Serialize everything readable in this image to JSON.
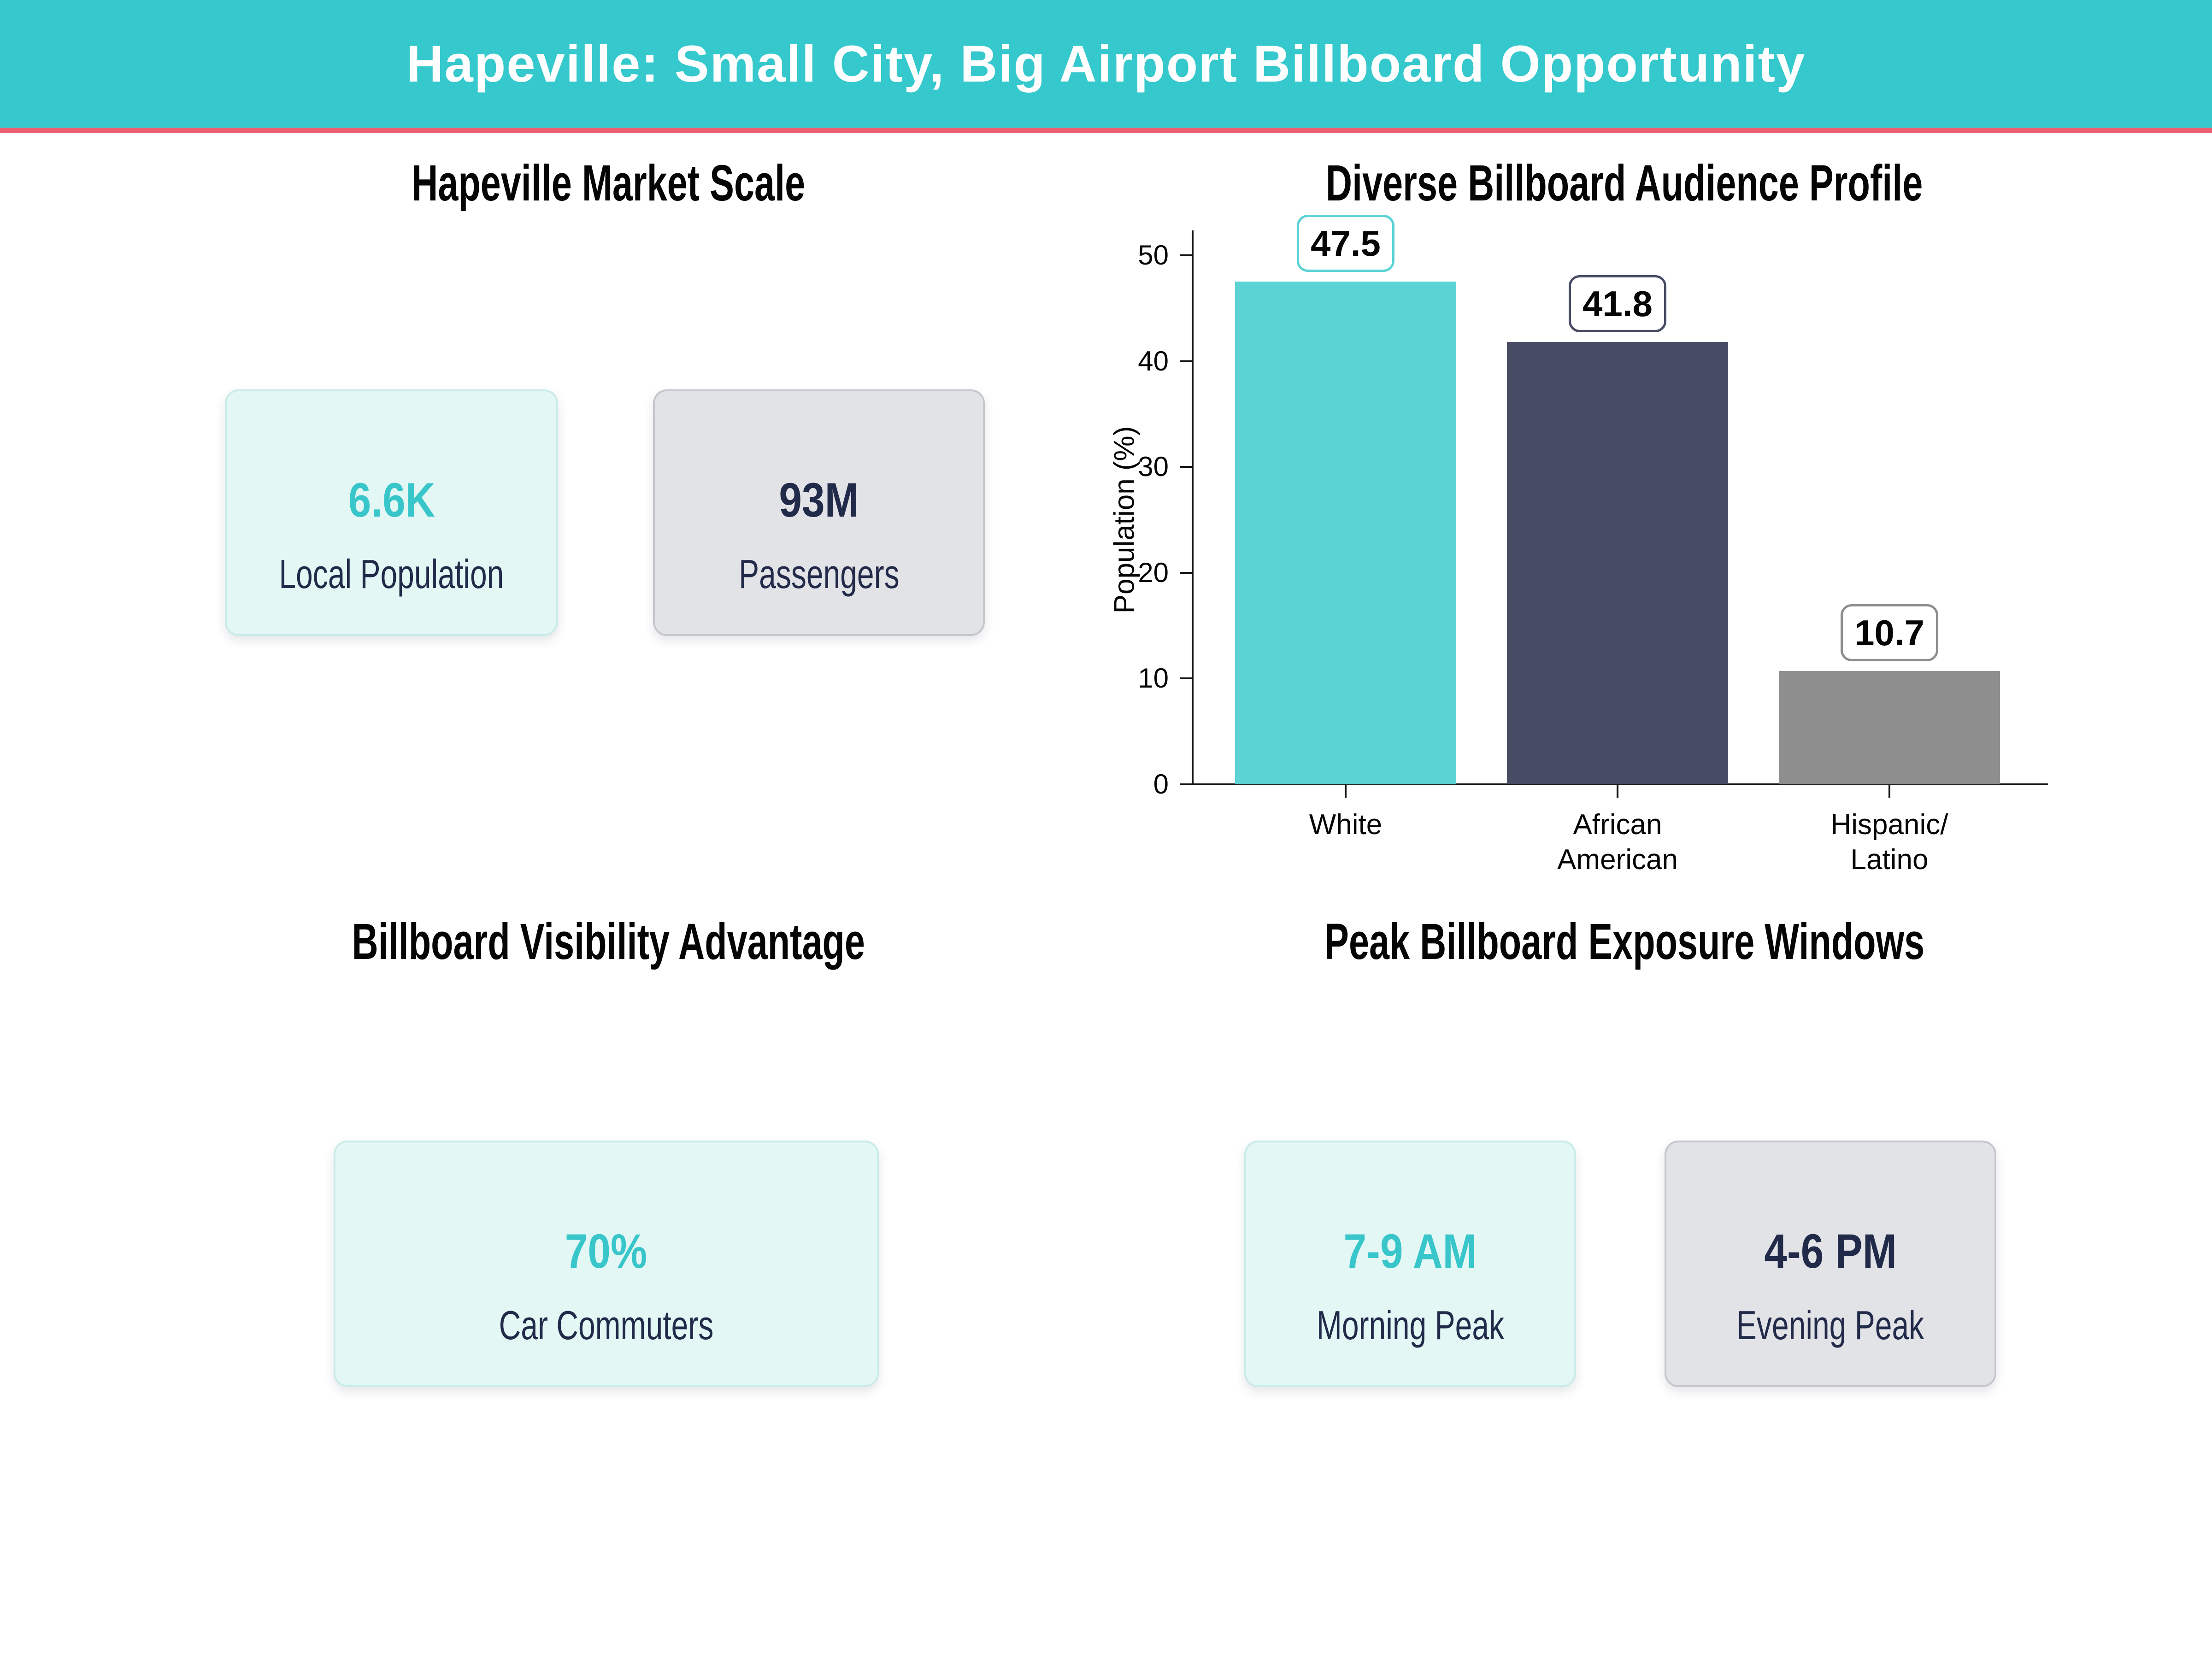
{
  "header": {
    "title": "Hapeville: Small City, Big Airport Billboard Opportunity"
  },
  "colors": {
    "header_bg": "#35c8cc",
    "header_underline": "#ee5e72",
    "accent_teal": "#38c6ca",
    "navy": "#222a4a",
    "teal_card_bg": "#e3f7f5",
    "teal_card_border": "#c9ece9",
    "gray_card_bg": "#e2e3e7",
    "gray_card_border": "#c6c7cd"
  },
  "sections": {
    "market": {
      "title": "Hapeville Market Scale",
      "cards": [
        {
          "value": "6.6K",
          "label": "Local Population"
        },
        {
          "value": "93M",
          "label": "Passengers"
        }
      ]
    },
    "audience": {
      "title": "Diverse Billboard Audience Profile"
    },
    "visibility": {
      "title": "Billboard Visibility Advantage",
      "cards": [
        {
          "value": "70%",
          "label": "Car Commuters"
        }
      ]
    },
    "peak": {
      "title": "Peak Billboard Exposure Windows",
      "cards": [
        {
          "value": "7-9 AM",
          "label": "Morning Peak"
        },
        {
          "value": "4-6 PM",
          "label": "Evening Peak"
        }
      ]
    }
  },
  "chart_data": {
    "type": "bar",
    "title": "Diverse Billboard Audience Profile",
    "categories": [
      "White",
      "African\nAmerican",
      "Hispanic/\nLatino"
    ],
    "values": [
      47.5,
      41.8,
      10.7
    ],
    "value_labels": [
      "47.5",
      "41.8",
      "10.7"
    ],
    "bar_colors": [
      "#5bd3d5",
      "#474b63",
      "#8e8e8e"
    ],
    "xlabel": "",
    "ylabel": "Population (%)",
    "ylim": [
      0,
      50
    ],
    "yticks": [
      0,
      10,
      20,
      30,
      40,
      50
    ],
    "grid": false,
    "legend": false
  }
}
